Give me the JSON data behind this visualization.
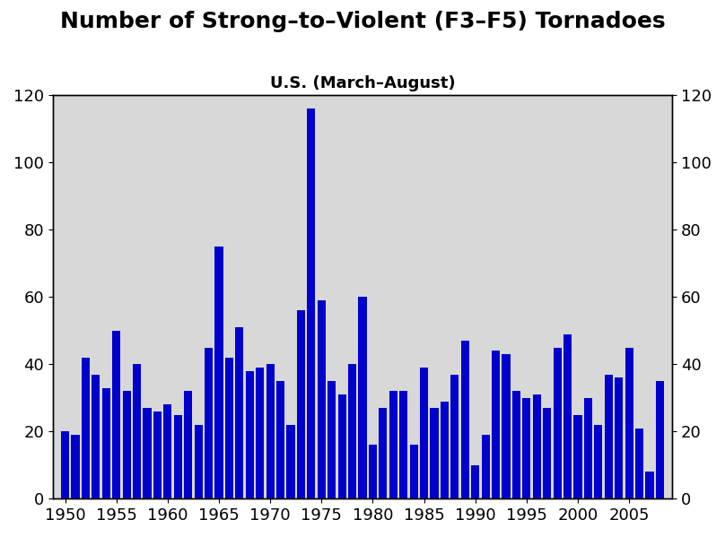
{
  "title": "Number of Strong–to–Violent (F3–F5) Tornadoes",
  "subtitle": "U.S. (March–August)",
  "bar_color": "#0000cc",
  "background_color": "#d8d8d8",
  "years": [
    1950,
    1951,
    1952,
    1953,
    1954,
    1955,
    1956,
    1957,
    1958,
    1959,
    1960,
    1961,
    1962,
    1963,
    1964,
    1965,
    1966,
    1967,
    1968,
    1969,
    1970,
    1971,
    1972,
    1973,
    1974,
    1975,
    1976,
    1977,
    1978,
    1979,
    1980,
    1981,
    1982,
    1983,
    1984,
    1985,
    1986,
    1987,
    1988,
    1989,
    1990,
    1991,
    1992,
    1993,
    1994,
    1995,
    1996,
    1997,
    1998,
    1999,
    2000,
    2001,
    2002,
    2003,
    2004,
    2005,
    2006,
    2007,
    2008
  ],
  "values": [
    20,
    19,
    42,
    37,
    33,
    50,
    32,
    40,
    27,
    26,
    28,
    25,
    32,
    22,
    45,
    75,
    42,
    51,
    38,
    39,
    40,
    35,
    22,
    56,
    116,
    59,
    35,
    31,
    40,
    60,
    16,
    27,
    32,
    32,
    16,
    39,
    27,
    29,
    37,
    47,
    10,
    19,
    44,
    43,
    32,
    30,
    31,
    27,
    45,
    49,
    25,
    30,
    22,
    37,
    36,
    45,
    21,
    8,
    35
  ],
  "ylim": [
    0,
    120
  ],
  "yticks": [
    0,
    20,
    40,
    60,
    80,
    100,
    120
  ],
  "xticks": [
    1950,
    1955,
    1960,
    1965,
    1970,
    1975,
    1980,
    1985,
    1990,
    1995,
    2000,
    2005
  ],
  "title_fontsize": 18,
  "subtitle_fontsize": 13,
  "tick_fontsize": 13
}
